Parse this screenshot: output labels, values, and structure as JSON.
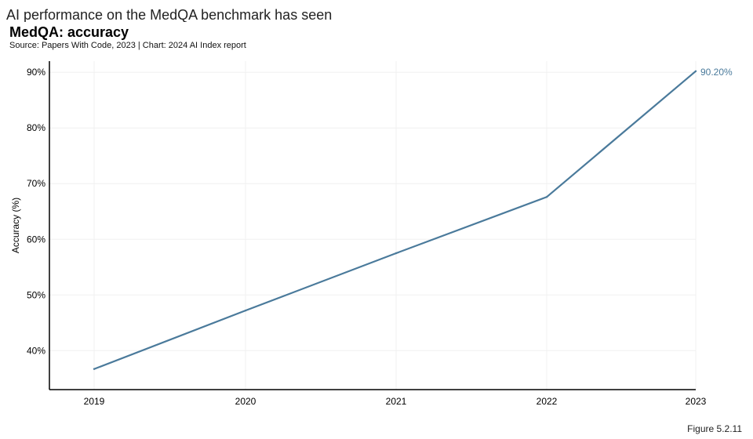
{
  "header": {
    "heading": "AI performance on the MedQA benchmark has seen",
    "title": "MedQA: accuracy",
    "source": "Source: Papers With Code, 2023 | Chart: 2024 AI Index report"
  },
  "footer": {
    "figure_label": "Figure 5.2.11"
  },
  "colors": {
    "line": "#4a7a9b",
    "grid": "#f0f0f0",
    "axis": "#000000"
  },
  "chart_data": {
    "type": "line",
    "title": "MedQA: accuracy",
    "xlabel": "",
    "ylabel": "Accuracy (%)",
    "x": [
      "2019",
      "2020",
      "2021",
      "2022",
      "2023"
    ],
    "series": [
      {
        "name": "Accuracy",
        "values": [
          36.7,
          47.2,
          57.5,
          67.6,
          90.2
        ]
      }
    ],
    "ylim": [
      33,
      92
    ],
    "yticks": [
      40,
      50,
      60,
      70,
      80,
      90
    ],
    "ytick_labels": [
      "40%",
      "50%",
      "60%",
      "70%",
      "80%",
      "90%"
    ],
    "grid": true,
    "annotation": {
      "index": 4,
      "text": "90.20%"
    }
  }
}
